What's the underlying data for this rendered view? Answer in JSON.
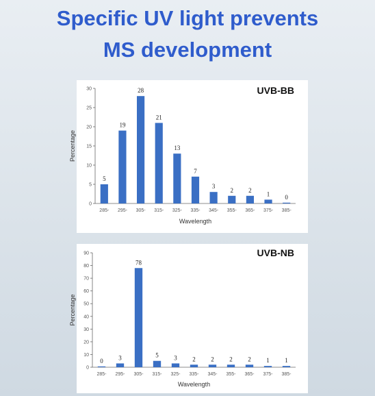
{
  "slide": {
    "title_line1": "Specific UV light prevents",
    "title_line2": "MS development"
  },
  "colors": {
    "title": "#2f5ccc",
    "bar": "#3a6fc4"
  },
  "chart_data": [
    {
      "type": "bar",
      "tag": "UVB-BB",
      "categories": [
        "285-",
        "295-",
        "305-",
        "315-",
        "325-",
        "335-",
        "345-",
        "355-",
        "365-",
        "375-",
        "385-"
      ],
      "values": [
        5,
        19,
        28,
        21,
        13,
        7,
        3,
        2,
        2,
        1,
        0
      ],
      "data_labels": [
        "5",
        "19",
        "28",
        "21",
        "13",
        "7",
        "3",
        "2",
        "2",
        "1",
        "0"
      ],
      "xlabel": "Wavelength",
      "ylabel": "Percentage",
      "ylim": [
        0,
        30
      ],
      "yticks": [
        0,
        5,
        10,
        15,
        20,
        25,
        30
      ],
      "grid": false
    },
    {
      "type": "bar",
      "tag": "UVB-NB",
      "categories": [
        "285-",
        "295-",
        "305-",
        "315-",
        "325-",
        "335-",
        "345-",
        "355-",
        "365-",
        "375-",
        "385-"
      ],
      "values": [
        0,
        3,
        78,
        5,
        3,
        2,
        2,
        2,
        2,
        1,
        1
      ],
      "data_labels": [
        "0",
        "3",
        "78",
        "5",
        "3",
        "2",
        "2",
        "2",
        "2",
        "1",
        "1"
      ],
      "xlabel": "Wavelength",
      "ylabel": "Percentage",
      "ylim": [
        0,
        90
      ],
      "yticks": [
        0,
        10,
        20,
        30,
        40,
        50,
        60,
        70,
        80,
        90
      ],
      "grid": false
    }
  ]
}
